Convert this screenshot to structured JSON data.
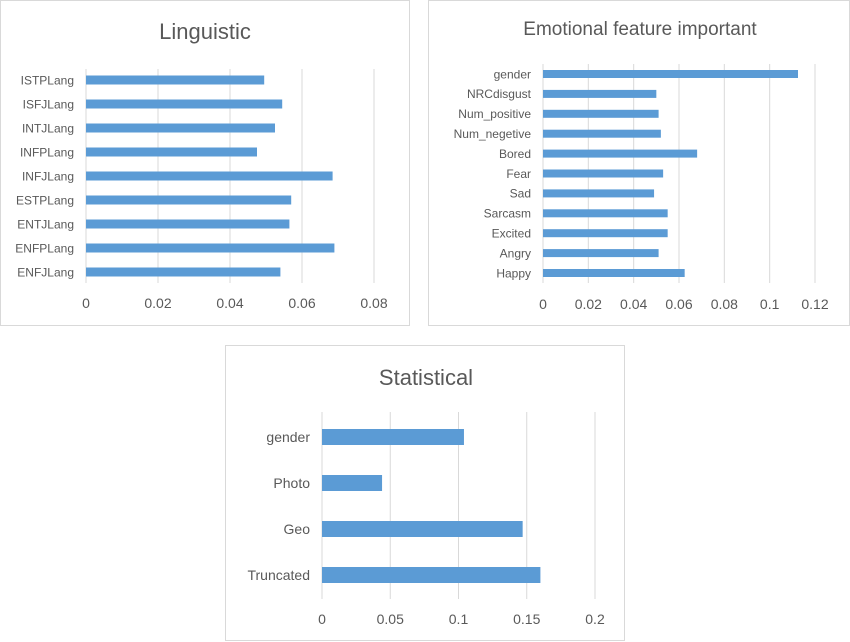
{
  "chart_data": [
    {
      "type": "bar",
      "orientation": "horizontal",
      "title": "Linguistic",
      "categories": [
        "ISTPLang",
        "ISFJLang",
        "INTJLang",
        "INFPLang",
        "INFJLang",
        "ESTPLang",
        "ENTJLang",
        "ENFPLang",
        "ENFJLang"
      ],
      "values": [
        0.0495,
        0.0545,
        0.0525,
        0.0475,
        0.0685,
        0.057,
        0.0565,
        0.069,
        0.054
      ],
      "xlim": [
        0,
        0.08
      ],
      "xticks": [
        "0",
        "0.02",
        "0.04",
        "0.06",
        "0.08"
      ],
      "xlabel": "",
      "ylabel": "",
      "grid": "vertical",
      "color": "#5b9bd5"
    },
    {
      "type": "bar",
      "orientation": "horizontal",
      "title": "Emotional feature important",
      "categories": [
        "gender",
        "NRCdisgust",
        "Num_positive",
        "Num_negetive",
        "Bored",
        "Fear",
        "Sad",
        "Sarcasm",
        "Excited",
        "Angry",
        "Happy"
      ],
      "values": [
        0.1125,
        0.05,
        0.051,
        0.052,
        0.068,
        0.053,
        0.049,
        0.055,
        0.055,
        0.051,
        0.0625
      ],
      "xlim": [
        0,
        0.12
      ],
      "xticks": [
        "0",
        "0.02",
        "0.04",
        "0.06",
        "0.08",
        "0.1",
        "0.12"
      ],
      "xlabel": "",
      "ylabel": "",
      "grid": "vertical",
      "color": "#5b9bd5"
    },
    {
      "type": "bar",
      "orientation": "horizontal",
      "title": "Statistical",
      "categories": [
        "gender",
        "Photo",
        "Geo",
        "Truncated"
      ],
      "values": [
        0.104,
        0.044,
        0.147,
        0.16
      ],
      "xlim": [
        0,
        0.2
      ],
      "xticks": [
        "0",
        "0.05",
        "0.1",
        "0.15",
        "0.2"
      ],
      "xlabel": "",
      "ylabel": "",
      "grid": "vertical",
      "color": "#5b9bd5"
    }
  ]
}
